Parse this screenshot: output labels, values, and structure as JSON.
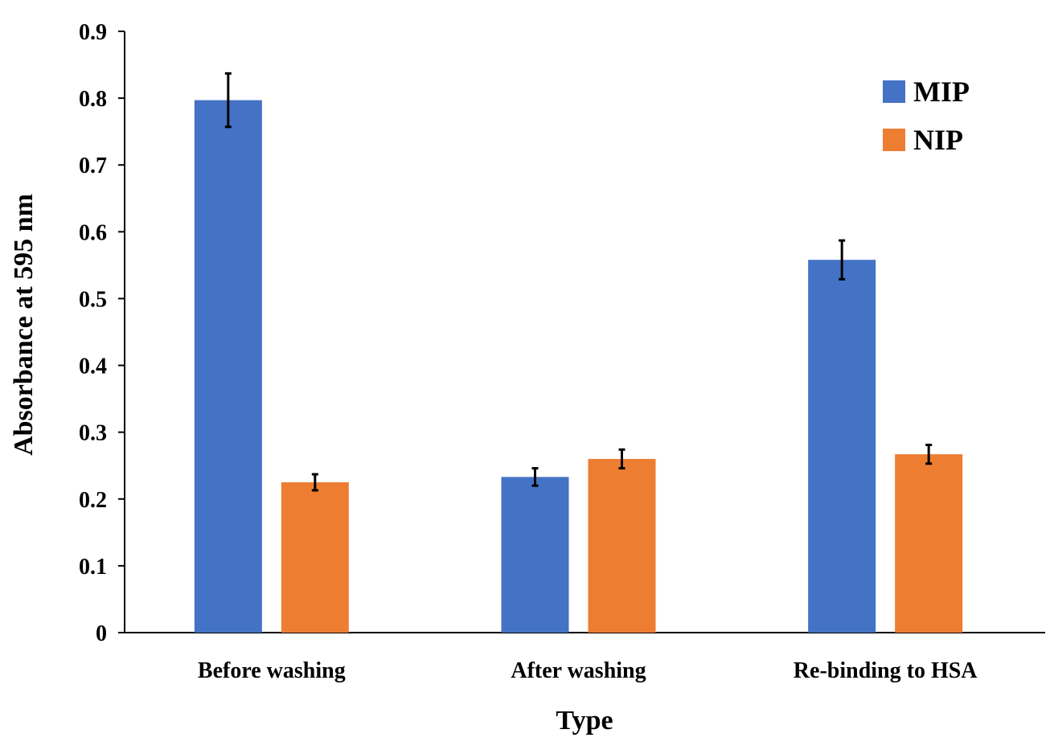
{
  "chart_data": {
    "type": "bar",
    "title": "",
    "xlabel": "Type",
    "ylabel": "Absorbance at 595 nm",
    "categories": [
      "Before washing",
      "After washing",
      "Re-binding to HSA"
    ],
    "series": [
      {
        "name": "MIP",
        "color": "#4472C4",
        "values": [
          0.797,
          0.233,
          0.558
        ],
        "errors": [
          0.04,
          0.013,
          0.029
        ]
      },
      {
        "name": "NIP",
        "color": "#ED7D31",
        "values": [
          0.225,
          0.26,
          0.267
        ],
        "errors": [
          0.012,
          0.014,
          0.014
        ]
      }
    ],
    "ylim": [
      0,
      0.9
    ],
    "yticks": [
      "0",
      "0.1",
      "0.2",
      "0.3",
      "0.4",
      "0.5",
      "0.6",
      "0.7",
      "0.8",
      "0.9"
    ],
    "grid": false,
    "legend_position": "top-right"
  }
}
